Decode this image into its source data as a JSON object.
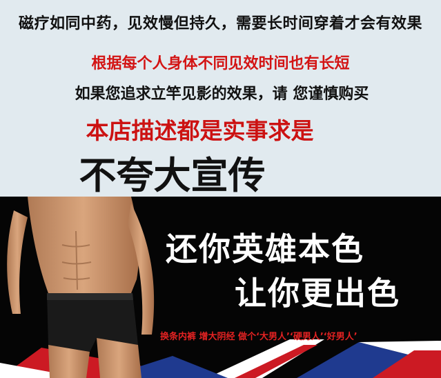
{
  "notice": {
    "line1": "磁疗如同中药，见效慢但持久，需要长时间穿着才会有效果",
    "line2": "根据每个人身体不同见效时间也有长短",
    "line3": "如果您追求立竿见影的效果，请 您谨慎购买",
    "line4": "本店描述都是实事求是",
    "line5": "不夸大宣传"
  },
  "banner": {
    "slogan1": "还你英雄本色",
    "slogan2": "让你更出色",
    "tagline": "换条内裤  增大阴经 做个‘大男人’‘硬男人’‘好男人’"
  },
  "colors": {
    "notice_bg": "#e1eaef",
    "red": "#cc1212",
    "banner_bg": "#050505",
    "flag_blue": "#1f3a8f",
    "flag_red": "#cc1a23"
  }
}
